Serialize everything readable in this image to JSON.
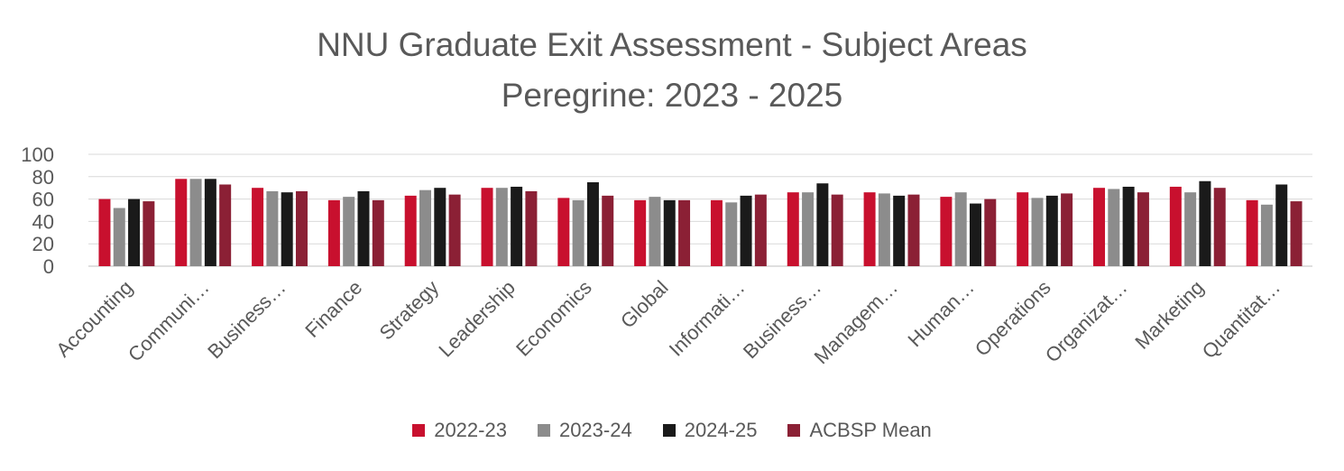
{
  "chart_data": {
    "type": "bar",
    "title": "NNU Graduate Exit Assessment - Subject Areas",
    "subtitle": "Peregrine: 2023 - 2025",
    "xlabel": "",
    "ylabel": "",
    "ylim": [
      0,
      100
    ],
    "yticks": [
      0,
      20,
      40,
      60,
      80,
      100
    ],
    "grid": true,
    "legend_position": "bottom",
    "categories": [
      "Accounting",
      "Communi…",
      "Business…",
      "Finance",
      "Strategy",
      "Leadership",
      "Economics",
      "Global",
      "Informati…",
      "Business…",
      "Managem…",
      "Human…",
      "Operations",
      "Organizat…",
      "Marketing",
      "Quantitat…"
    ],
    "series": [
      {
        "name": "2022-23",
        "color": "#c8102e",
        "values": [
          60,
          78,
          70,
          59,
          63,
          70,
          61,
          59,
          59,
          66,
          66,
          62,
          66,
          70,
          71,
          59
        ]
      },
      {
        "name": "2023-24",
        "color": "#8c8c8c",
        "values": [
          52,
          78,
          67,
          62,
          68,
          70,
          59,
          62,
          57,
          66,
          65,
          66,
          61,
          69,
          66,
          55
        ]
      },
      {
        "name": "2024-25",
        "color": "#1a1a1a",
        "values": [
          60,
          78,
          66,
          67,
          70,
          71,
          75,
          59,
          63,
          74,
          63,
          56,
          63,
          71,
          76,
          73
        ]
      },
      {
        "name": "ACBSP Mean",
        "color": "#8b2035",
        "values": [
          58,
          73,
          67,
          59,
          64,
          67,
          63,
          59,
          64,
          64,
          64,
          60,
          65,
          66,
          70,
          58
        ]
      }
    ]
  }
}
